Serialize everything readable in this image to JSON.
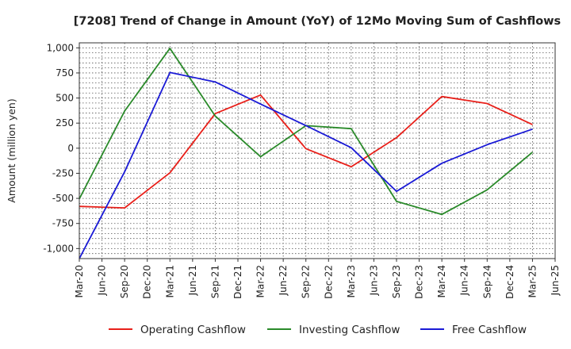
{
  "chart_data": {
    "type": "line",
    "title": "[7208]  Trend of Change in Amount (YoY) of 12Mo Moving Sum of Cashflows",
    "xlabel": "",
    "ylabel": "Amount (million yen)",
    "ylim": [
      -1100,
      1050
    ],
    "yticks": [
      1000,
      750,
      500,
      250,
      0,
      -250,
      -500,
      -750,
      -1000
    ],
    "ytick_labels": [
      "1,000",
      "750",
      "500",
      "250",
      "0",
      "-250",
      "-500",
      "-750",
      "-1,000"
    ],
    "categories": [
      "Mar-20",
      "Jun-20",
      "Sep-20",
      "Dec-20",
      "Mar-21",
      "Jun-21",
      "Sep-21",
      "Dec-21",
      "Mar-22",
      "Jun-22",
      "Sep-22",
      "Dec-22",
      "Mar-23",
      "Jun-23",
      "Sep-23",
      "Dec-23",
      "Mar-24",
      "Jun-24",
      "Sep-24",
      "Dec-24",
      "Mar-25",
      "Jun-25"
    ],
    "grid": true,
    "legend_position": "bottom",
    "series": [
      {
        "name": "Operating Cashflow",
        "color": "#e8201a",
        "points": [
          [
            "Mar-20",
            -580
          ],
          [
            "Sep-20",
            -595
          ],
          [
            "Mar-21",
            -245
          ],
          [
            "Sep-21",
            345
          ],
          [
            "Mar-22",
            530
          ],
          [
            "Sep-22",
            -5
          ],
          [
            "Mar-23",
            -185
          ],
          [
            "Sep-23",
            105
          ],
          [
            "Mar-24",
            515
          ],
          [
            "Sep-24",
            445
          ],
          [
            "Mar-25",
            235
          ]
        ]
      },
      {
        "name": "Investing Cashflow",
        "color": "#2a8a2a",
        "points": [
          [
            "Mar-20",
            -505
          ],
          [
            "Sep-20",
            370
          ],
          [
            "Mar-21",
            995
          ],
          [
            "Sep-21",
            320
          ],
          [
            "Mar-22",
            -85
          ],
          [
            "Sep-22",
            225
          ],
          [
            "Mar-23",
            195
          ],
          [
            "Sep-23",
            -530
          ],
          [
            "Mar-24",
            -660
          ],
          [
            "Sep-24",
            -415
          ],
          [
            "Mar-25",
            -40
          ]
        ]
      },
      {
        "name": "Free Cashflow",
        "color": "#1a1ad6",
        "points": [
          [
            "Mar-20",
            -1100
          ],
          [
            "Sep-20",
            -235
          ],
          [
            "Mar-21",
            755
          ],
          [
            "Sep-21",
            660
          ],
          [
            "Mar-22",
            440
          ],
          [
            "Sep-22",
            225
          ],
          [
            "Mar-23",
            5
          ],
          [
            "Sep-23",
            -430
          ],
          [
            "Mar-24",
            -150
          ],
          [
            "Sep-24",
            35
          ],
          [
            "Mar-25",
            190
          ]
        ]
      }
    ]
  }
}
